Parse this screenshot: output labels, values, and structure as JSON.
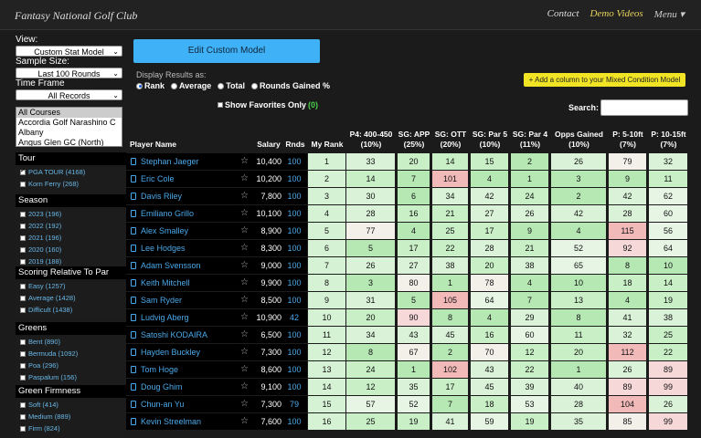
{
  "header": {
    "brand": "Fantasy National Golf Club",
    "nav": [
      "Contact",
      "Demo Videos",
      "Menu ▾"
    ]
  },
  "sidebar": {
    "view_label": "View:",
    "view_value": "Custom Stat Model",
    "sample_label": "Sample Size:",
    "sample_value": "Last 100 Rounds",
    "time_label": "Time Frame",
    "time_value": "All Records",
    "courses": [
      "All Courses",
      "Accordia Golf Narashino C",
      "Albany",
      "Angus Glen GC (North)"
    ],
    "sections": [
      {
        "title": "Tour",
        "options": [
          {
            "label": "PGA TOUR (4168)",
            "checked": true
          },
          {
            "label": "Korn Ferry (268)",
            "checked": false
          }
        ]
      },
      {
        "title": "Season",
        "options": [
          {
            "label": "2023 (196)",
            "checked": false
          },
          {
            "label": "2022 (192)",
            "checked": false
          },
          {
            "label": "2021 (196)",
            "checked": false
          },
          {
            "label": "2020 (160)",
            "checked": false
          },
          {
            "label": "2019 (188)",
            "checked": false
          }
        ]
      },
      {
        "title": "Scoring Relative To Par",
        "options": [
          {
            "label": "Easy (1257)",
            "checked": false
          },
          {
            "label": "Average (1428)",
            "checked": false
          },
          {
            "label": "Difficult (1438)",
            "checked": false
          }
        ]
      },
      {
        "title": "Greens",
        "options": [
          {
            "label": "Bent (890)",
            "checked": false
          },
          {
            "label": "Bermuda (1092)",
            "checked": false
          },
          {
            "label": "Poa (296)",
            "checked": false
          },
          {
            "label": "Paspalum (156)",
            "checked": false
          }
        ]
      },
      {
        "title": "Green Firmness",
        "options": [
          {
            "label": "Soft (414)",
            "checked": false
          },
          {
            "label": "Medium (889)",
            "checked": false
          },
          {
            "label": "Firm (824)",
            "checked": false
          }
        ]
      }
    ]
  },
  "main": {
    "edit_button": "Edit Custom Model",
    "display_label": "Display Results as:",
    "radios": [
      {
        "label": "Rank",
        "on": true
      },
      {
        "label": "Average",
        "on": false
      },
      {
        "label": "Total",
        "on": false
      },
      {
        "label": "Rounds Gained %",
        "on": false
      }
    ],
    "add_column": "+ Add a column to your Mixed Condition Model",
    "favorites_label": "Show Favorites Only",
    "favorites_count": "(0)",
    "search_label": "Search:",
    "search_value": ""
  },
  "table": {
    "col_player": "Player Name",
    "col_salary": "Salary",
    "col_rnds": "Rnds",
    "col_myrank": "My Rank",
    "stat_columns": [
      "P4: 400-450\n(10%)",
      "SG: APP\n(25%)",
      "SG: OTT\n(20%)",
      "SG: Par 5\n(10%)",
      "SG: Par 4\n(11%)",
      "Opps Gained\n(10%)",
      "P: 5-10ft\n(7%)",
      "P: 10-15ft\n(7%)"
    ],
    "rows": [
      {
        "name": "Stephan Jaeger",
        "salary": "10,400",
        "rnds": "100",
        "rank": "1",
        "stats": [
          "33",
          "20",
          "14",
          "15",
          "2",
          "26",
          "79",
          "32"
        ]
      },
      {
        "name": "Eric Cole",
        "salary": "10,200",
        "rnds": "100",
        "rank": "2",
        "stats": [
          "14",
          "7",
          "101",
          "4",
          "1",
          "3",
          "9",
          "11"
        ]
      },
      {
        "name": "Davis Riley",
        "salary": "7,800",
        "rnds": "100",
        "rank": "3",
        "stats": [
          "30",
          "6",
          "34",
          "42",
          "24",
          "2",
          "42",
          "62"
        ]
      },
      {
        "name": "Emiliano Grillo",
        "salary": "10,100",
        "rnds": "100",
        "rank": "4",
        "stats": [
          "28",
          "16",
          "21",
          "27",
          "26",
          "42",
          "28",
          "60"
        ]
      },
      {
        "name": "Alex Smalley",
        "salary": "8,900",
        "rnds": "100",
        "rank": "5",
        "stats": [
          "77",
          "4",
          "25",
          "17",
          "9",
          "4",
          "115",
          "56"
        ]
      },
      {
        "name": "Lee Hodges",
        "salary": "8,300",
        "rnds": "100",
        "rank": "6",
        "stats": [
          "5",
          "17",
          "22",
          "28",
          "21",
          "52",
          "92",
          "64"
        ]
      },
      {
        "name": "Adam Svensson",
        "salary": "9,000",
        "rnds": "100",
        "rank": "7",
        "stats": [
          "26",
          "27",
          "38",
          "20",
          "38",
          "65",
          "8",
          "10"
        ]
      },
      {
        "name": "Keith Mitchell",
        "salary": "9,900",
        "rnds": "100",
        "rank": "8",
        "stats": [
          "3",
          "80",
          "1",
          "78",
          "4",
          "10",
          "18",
          "14"
        ]
      },
      {
        "name": "Sam Ryder",
        "salary": "8,500",
        "rnds": "100",
        "rank": "9",
        "stats": [
          "31",
          "5",
          "105",
          "64",
          "7",
          "13",
          "4",
          "19"
        ]
      },
      {
        "name": "Ludvig Aberg",
        "salary": "10,900",
        "rnds": "42",
        "rank": "10",
        "stats": [
          "20",
          "90",
          "8",
          "4",
          "29",
          "8",
          "41",
          "38"
        ]
      },
      {
        "name": "Satoshi KODAIRA",
        "salary": "6,500",
        "rnds": "100",
        "rank": "11",
        "stats": [
          "34",
          "43",
          "45",
          "16",
          "60",
          "11",
          "32",
          "25"
        ]
      },
      {
        "name": "Hayden Buckley",
        "salary": "7,300",
        "rnds": "100",
        "rank": "12",
        "stats": [
          "8",
          "67",
          "2",
          "70",
          "12",
          "20",
          "112",
          "22"
        ]
      },
      {
        "name": "Tom Hoge",
        "salary": "8,600",
        "rnds": "100",
        "rank": "13",
        "stats": [
          "24",
          "1",
          "102",
          "43",
          "22",
          "1",
          "26",
          "89"
        ]
      },
      {
        "name": "Doug Ghim",
        "salary": "9,100",
        "rnds": "100",
        "rank": "14",
        "stats": [
          "12",
          "35",
          "17",
          "45",
          "39",
          "40",
          "89",
          "99"
        ]
      },
      {
        "name": "Chun-an Yu",
        "salary": "7,300",
        "rnds": "79",
        "rank": "15",
        "stats": [
          "57",
          "52",
          "7",
          "18",
          "53",
          "28",
          "104",
          "26"
        ]
      },
      {
        "name": "Kevin Streelman",
        "salary": "7,600",
        "rnds": "100",
        "rank": "16",
        "stats": [
          "25",
          "19",
          "41",
          "59",
          "19",
          "35",
          "85",
          "99"
        ]
      }
    ]
  }
}
